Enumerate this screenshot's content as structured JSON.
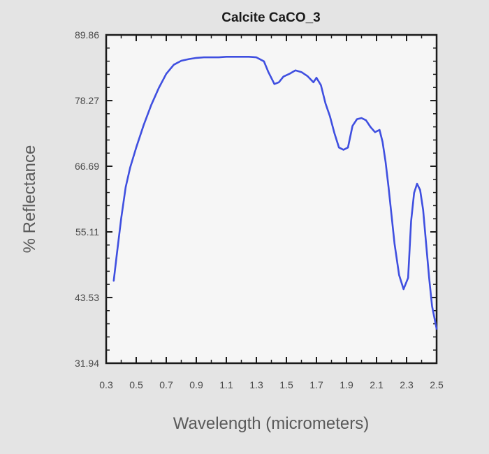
{
  "chart_data": {
    "type": "line",
    "title": "Calcite CaCO_3",
    "xlabel": "Wavelength (micrometers)",
    "ylabel": "% Reflectance",
    "xlim": [
      0.3,
      2.5
    ],
    "ylim": [
      31.94,
      89.86
    ],
    "x_ticks": [
      "0.3",
      "0.5",
      "0.7",
      "0.9",
      "1.1",
      "1.3",
      "1.5",
      "1.7",
      "1.9",
      "2.1",
      "2.3",
      "2.5"
    ],
    "y_ticks": [
      "31.94",
      "43.53",
      "55.11",
      "66.69",
      "78.27",
      "89.86"
    ],
    "grid": false,
    "line_color": "#3f4fe0",
    "series": [
      {
        "x": [
          0.35,
          0.37,
          0.4,
          0.43,
          0.46,
          0.5,
          0.55,
          0.6,
          0.65,
          0.7,
          0.75,
          0.8,
          0.85,
          0.9,
          0.95,
          1.0,
          1.05,
          1.1,
          1.15,
          1.2,
          1.25,
          1.3,
          1.35,
          1.38,
          1.42,
          1.45,
          1.48,
          1.52,
          1.56,
          1.6,
          1.64,
          1.68,
          1.7,
          1.73,
          1.76,
          1.79,
          1.82,
          1.85,
          1.88,
          1.91,
          1.94,
          1.97,
          2.0,
          2.03,
          2.06,
          2.09,
          2.12,
          2.14,
          2.16,
          2.18,
          2.2,
          2.22,
          2.25,
          2.28,
          2.31,
          2.33,
          2.35,
          2.37,
          2.39,
          2.41,
          2.43,
          2.45,
          2.47,
          2.5
        ],
        "y": [
          46.5,
          51.0,
          57.5,
          63.0,
          66.5,
          70.0,
          74.0,
          77.5,
          80.5,
          83.0,
          84.6,
          85.3,
          85.6,
          85.8,
          85.9,
          85.9,
          85.9,
          86.0,
          86.0,
          86.0,
          86.0,
          85.9,
          85.2,
          83.3,
          81.2,
          81.5,
          82.5,
          83.0,
          83.6,
          83.3,
          82.6,
          81.5,
          82.3,
          81.0,
          77.8,
          75.5,
          72.5,
          70.0,
          69.6,
          70.0,
          73.8,
          75.0,
          75.2,
          74.8,
          73.6,
          72.7,
          73.1,
          71.0,
          67.5,
          63.0,
          58.0,
          53.0,
          47.5,
          45.0,
          47.0,
          57.0,
          62.0,
          63.6,
          62.5,
          59.0,
          53.0,
          47.0,
          42.0,
          38.0
        ]
      }
    ]
  }
}
